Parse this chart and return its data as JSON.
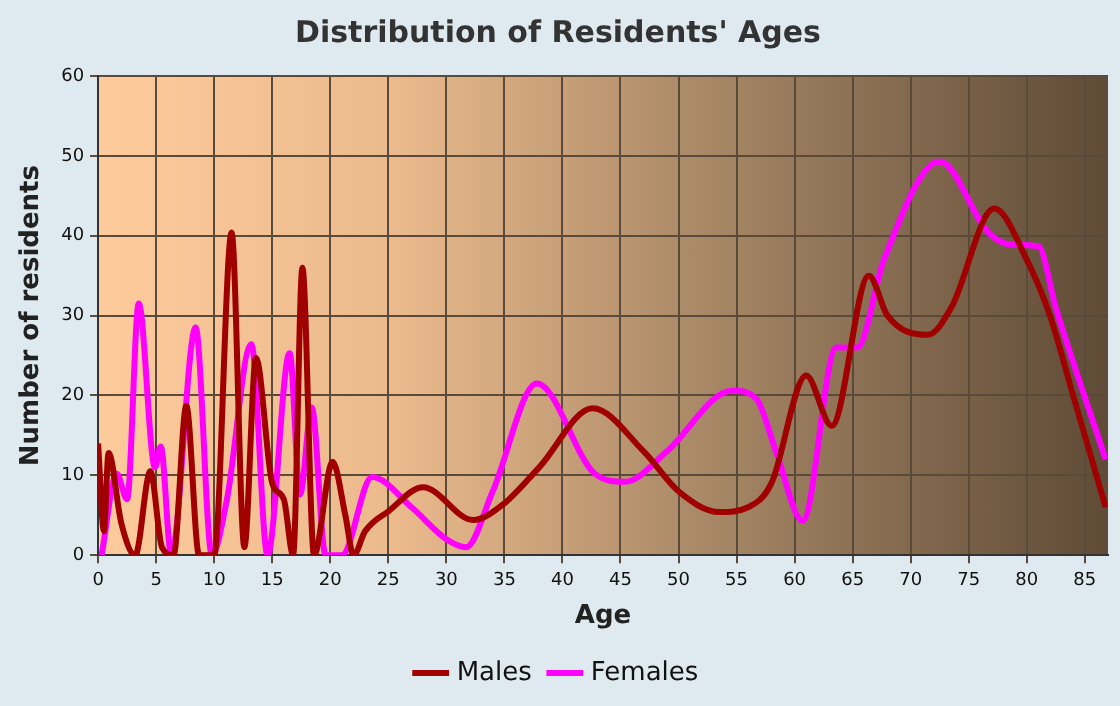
{
  "chart_data": {
    "type": "line",
    "title": "Distribution of Residents' Ages",
    "xlabel": "Age",
    "ylabel": "Number of residents",
    "xlim": [
      0,
      87
    ],
    "xticks": [
      0,
      5,
      10,
      15,
      20,
      25,
      30,
      35,
      40,
      45,
      50,
      55,
      60,
      65,
      70,
      75,
      80,
      85
    ],
    "ylim": [
      0,
      60
    ],
    "yticks": [
      0,
      10,
      20,
      30,
      40,
      50,
      60
    ],
    "grid": true,
    "legend": "bottom",
    "marker": "none",
    "line_style": "solid",
    "series": [
      {
        "name": "Males",
        "color": "#a00000",
        "x": [
          0,
          0.5,
          0.9,
          2,
          3.2,
          4.5,
          5.5,
          6.5,
          7.6,
          8.7,
          10,
          11.5,
          12.6,
          13.6,
          15,
          16,
          16.8,
          17.6,
          18.6,
          20.2,
          21.3,
          22,
          23,
          25,
          28,
          32.3,
          35,
          38,
          42.6,
          47,
          50,
          53.5,
          56,
          58,
          61,
          63.2,
          66.4,
          68,
          71.5,
          73.5,
          77.2,
          80,
          82,
          84,
          86.8
        ],
        "values": [
          14,
          3,
          12.8,
          4,
          0,
          10.5,
          1,
          0,
          18.7,
          0,
          0,
          40.4,
          1,
          24.7,
          9,
          7,
          0,
          36,
          0,
          11.7,
          5,
          0,
          3,
          5.5,
          8.5,
          4.4,
          6.5,
          11,
          18.4,
          13,
          8,
          5.4,
          6,
          9,
          22.5,
          16.2,
          35,
          30,
          27.6,
          31,
          43.4,
          37,
          30,
          20,
          6
        ]
      },
      {
        "name": "Females",
        "color": "#ff00ff",
        "x": [
          0.3,
          1.6,
          2.5,
          3.5,
          4.9,
          5.4,
          6.3,
          8.4,
          9.8,
          11.1,
          13.2,
          14.6,
          16.5,
          17.4,
          18.4,
          19.6,
          21,
          23.6,
          27,
          30,
          31.7,
          34,
          37.8,
          42.8,
          45.4,
          49,
          54.6,
          56.7,
          58.4,
          60.7,
          63.6,
          65.4,
          67.7,
          72.5,
          76.7,
          78.7,
          81,
          82.5,
          86.8
        ],
        "values": [
          0,
          10.2,
          7,
          31.5,
          11,
          13.6,
          0,
          28.5,
          0,
          7,
          26.4,
          0,
          25.3,
          7.6,
          18.5,
          0,
          0,
          9.8,
          6,
          2,
          1,
          8,
          21.5,
          10.2,
          9.2,
          13,
          20.6,
          19.6,
          13,
          4.3,
          26,
          26,
          37,
          49.3,
          40.4,
          38.9,
          38.7,
          31,
          12
        ]
      }
    ]
  }
}
